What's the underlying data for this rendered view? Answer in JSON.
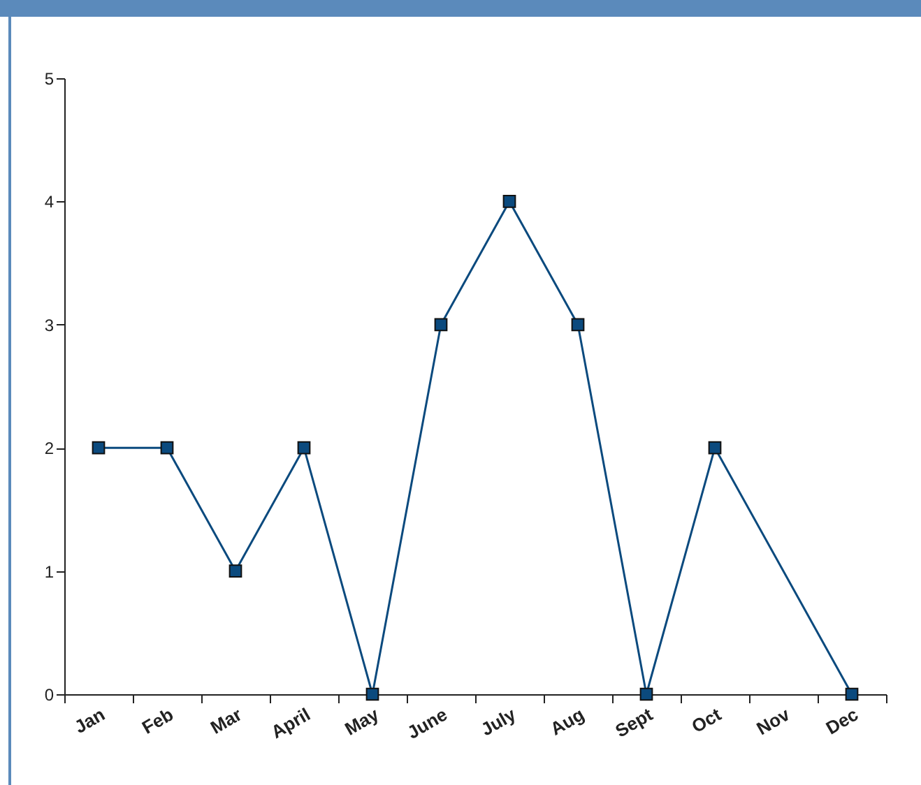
{
  "chart_data": {
    "type": "line",
    "categories": [
      "Jan",
      "Feb",
      "Mar",
      "April",
      "May",
      "June",
      "July",
      "Aug",
      "Sept",
      "Oct",
      "Nov",
      "Dec"
    ],
    "series": [
      {
        "color": "#0b4a7e",
        "values": [
          2,
          2,
          1,
          2,
          0,
          3,
          4,
          3,
          0,
          2,
          null,
          0
        ]
      }
    ],
    "ylim": [
      0,
      5
    ],
    "yticks": [
      0,
      1,
      2,
      3,
      4,
      5
    ],
    "grid": false,
    "marker": "square",
    "line_style": "solid"
  }
}
